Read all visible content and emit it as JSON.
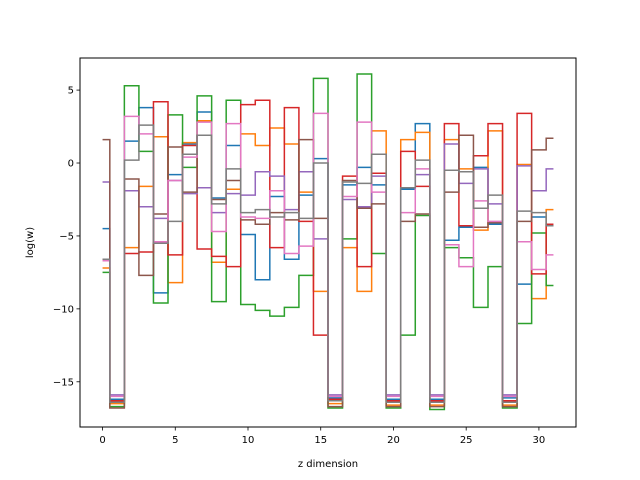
{
  "chart_data": {
    "type": "line",
    "drawstyle": "steps-mid",
    "title": "",
    "xlabel": "z dimension",
    "ylabel": "log(w)",
    "xlim": [
      -1.55,
      32.55
    ],
    "ylim": [
      -18.1,
      7.2
    ],
    "xticks": [
      0,
      5,
      10,
      15,
      20,
      25,
      30
    ],
    "yticks": [
      5,
      0,
      -5,
      -10,
      -15
    ],
    "ytick_labels": [
      "5",
      "0",
      "−5",
      "−10",
      "−15"
    ],
    "x": [
      0,
      1,
      2,
      3,
      4,
      5,
      6,
      7,
      8,
      9,
      10,
      11,
      12,
      13,
      14,
      15,
      16,
      17,
      18,
      19,
      20,
      21,
      22,
      23,
      24,
      25,
      26,
      27,
      28,
      29,
      30,
      31
    ],
    "series": [
      {
        "color": "#1f77b4",
        "values": [
          -4.5,
          -16.2,
          1.5,
          3.8,
          -8.9,
          -0.8,
          1.3,
          3.5,
          -2.4,
          1.2,
          -4.9,
          -8.0,
          -2.3,
          -6.6,
          -2.2,
          0.3,
          -16.1,
          -1.5,
          -0.3,
          -1.5,
          -16.2,
          -1.8,
          2.7,
          -16.2,
          -5.3,
          -4.4,
          -0.3,
          -4.2,
          -16.1,
          -8.3,
          -3.7,
          -4.3
        ]
      },
      {
        "color": "#ff7f0e",
        "values": [
          -7.2,
          -16.5,
          -5.8,
          -1.6,
          1.8,
          -8.2,
          1.4,
          2.9,
          -6.8,
          -1.8,
          2.0,
          1.2,
          2.4,
          1.3,
          -2.0,
          -8.8,
          -16.5,
          -5.8,
          -8.8,
          2.2,
          -16.6,
          1.6,
          2.1,
          -16.6,
          1.6,
          -0.4,
          -4.6,
          2.2,
          -16.6,
          -0.1,
          -9.3,
          -3.2
        ]
      },
      {
        "color": "#2ca02c",
        "values": [
          -7.5,
          -16.7,
          5.3,
          0.8,
          -9.6,
          3.3,
          -0.3,
          4.6,
          -9.5,
          4.3,
          -9.7,
          -10.1,
          -10.5,
          -9.9,
          -7.7,
          5.8,
          -16.8,
          -5.2,
          6.1,
          -6.2,
          -16.8,
          -11.8,
          -3.6,
          -16.9,
          -5.8,
          -6.5,
          -9.9,
          -7.1,
          -16.8,
          -11.0,
          -4.8,
          -8.4
        ]
      },
      {
        "color": "#d62728",
        "values": [
          -6.6,
          -16.3,
          -6.2,
          -6.1,
          4.2,
          -6.3,
          1.2,
          -5.9,
          -6.4,
          -7.1,
          4.0,
          4.3,
          -5.8,
          3.8,
          -4.0,
          -11.8,
          -16.2,
          -0.9,
          -7.1,
          -0.7,
          -16.3,
          0.8,
          -1.6,
          -16.3,
          2.7,
          -4.3,
          0.5,
          2.7,
          -16.3,
          3.4,
          -7.6,
          -4.2
        ]
      },
      {
        "color": "#9467bd",
        "values": [
          -1.3,
          -15.9,
          -1.9,
          -3.0,
          -3.8,
          -1.2,
          -2.1,
          -1.7,
          -3.4,
          -2.1,
          -2.2,
          -0.6,
          -0.9,
          -3.2,
          -0.6,
          -5.2,
          -15.9,
          -2.5,
          -3.0,
          -0.9,
          -15.9,
          -1.7,
          -0.8,
          -15.9,
          1.3,
          -1.4,
          -0.4,
          -2.8,
          -15.9,
          -0.2,
          -1.9,
          -0.4
        ]
      },
      {
        "color": "#8c564b",
        "values": [
          1.6,
          -16.8,
          -1.1,
          -7.7,
          -3.5,
          1.1,
          -2.0,
          1.9,
          -2.5,
          -1.2,
          -3.9,
          -4.2,
          -3.4,
          -3.9,
          1.6,
          -3.8,
          -16.7,
          -1.2,
          -3.1,
          -2.8,
          -16.7,
          -4.0,
          -3.5,
          -16.7,
          -2.0,
          1.9,
          -4.4,
          -4.1,
          -16.7,
          -4.0,
          0.9,
          1.7
        ]
      },
      {
        "color": "#e377c2",
        "values": [
          -6.7,
          -16.0,
          3.2,
          2.0,
          -5.4,
          -1.2,
          0.4,
          2.8,
          -4.7,
          2.7,
          -3.7,
          -3.8,
          -1.9,
          -6.2,
          -5.7,
          3.4,
          -16.0,
          -2.3,
          2.8,
          -2.0,
          -16.0,
          -3.4,
          -0.4,
          -16.0,
          -5.6,
          -7.1,
          -2.6,
          -4.0,
          -16.0,
          -5.4,
          -7.3,
          -6.3
        ]
      },
      {
        "color": "#7f7f7f",
        "values": [
          -6.6,
          -16.4,
          0.2,
          2.6,
          -5.5,
          -4.0,
          0.6,
          1.9,
          -2.8,
          -0.4,
          -3.4,
          -3.2,
          -3.7,
          -3.4,
          -3.8,
          0.0,
          -16.3,
          -1.3,
          -1.4,
          0.6,
          -16.4,
          -1.7,
          0.2,
          -16.4,
          -0.5,
          -0.6,
          -3.1,
          -2.2,
          -16.4,
          -3.3,
          -3.4,
          -4.3
        ]
      }
    ]
  }
}
